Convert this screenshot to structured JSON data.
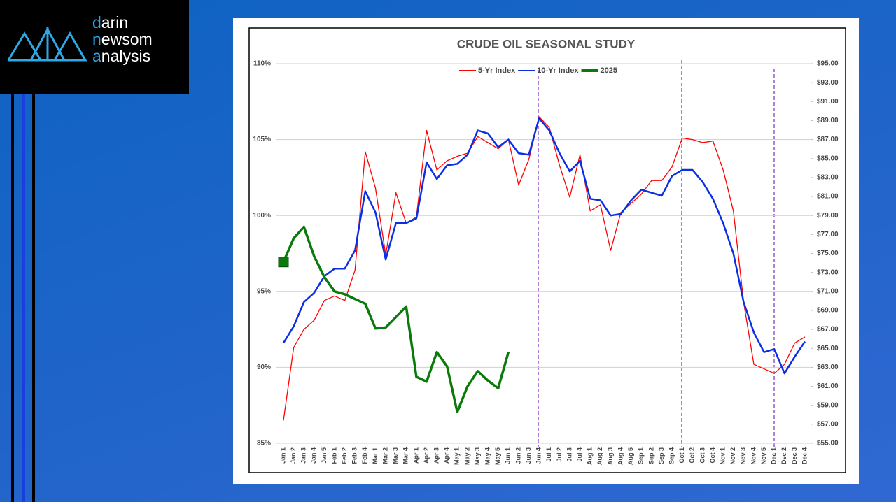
{
  "logo": [
    "darin",
    "newsom",
    "analysis"
  ],
  "chart_data": {
    "type": "line",
    "title": "CRUDE OIL SEASONAL STUDY",
    "categories": [
      "Jan 1",
      "Jan 2",
      "Jan 3",
      "Jan 4",
      "Jan 5",
      "Feb 1",
      "Feb 2",
      "Feb 3",
      "Feb 4",
      "Mar 1",
      "Mar 2",
      "Mar 3",
      "Mar 4",
      "Apr 1",
      "Apr 2",
      "Apr 3",
      "Apr 4",
      "May 1",
      "May 2",
      "May 3",
      "May 4",
      "May 5",
      "Jun 1",
      "Jun 2",
      "Jun 3",
      "Jun 4",
      "Jul 1",
      "Jul 2",
      "Jul 3",
      "Jul 4",
      "Aug 1",
      "Aug 2",
      "Aug 3",
      "Aug 4",
      "Aug 5",
      "Sep 1",
      "Sep 2",
      "Sep 3",
      "Sep 4",
      "Oct 1",
      "Oct 2",
      "Oct 3",
      "Oct 4",
      "Nov 1",
      "Nov 2",
      "Nov 3",
      "Nov 4",
      "Nov 5",
      "Dec 1",
      "Dec 2",
      "Dec 3",
      "Dec 4"
    ],
    "series": [
      {
        "name": "5-Yr Index",
        "color": "#ff0000",
        "values": [
          86.5,
          91.3,
          92.5,
          93.1,
          94.4,
          94.7,
          94.4,
          96.4,
          104.2,
          101.8,
          97.4,
          101.5,
          99.5,
          99.9,
          105.6,
          103.0,
          103.6,
          103.9,
          104.1,
          105.2,
          104.8,
          104.4,
          105.0,
          102.0,
          103.7,
          106.5,
          105.8,
          103.3,
          101.2,
          104.0,
          100.3,
          100.7,
          97.7,
          100.2,
          100.8,
          101.4,
          102.3,
          102.3,
          103.2,
          105.1,
          105.0,
          104.8,
          104.9,
          103.0,
          100.3,
          94.3,
          90.2,
          89.9,
          89.6,
          90.2,
          91.6,
          92.0
        ]
      },
      {
        "name": "10-Yr Index",
        "color": "#0a2ee6",
        "values": [
          91.6,
          92.7,
          94.3,
          94.9,
          96.0,
          96.5,
          96.5,
          97.7,
          101.6,
          100.2,
          97.1,
          99.5,
          99.5,
          99.8,
          103.5,
          102.4,
          103.3,
          103.4,
          104.0,
          105.6,
          105.4,
          104.5,
          105.0,
          104.1,
          104.0,
          106.4,
          105.6,
          104.1,
          102.9,
          103.6,
          101.1,
          101.0,
          100.0,
          100.1,
          101.0,
          101.7,
          101.5,
          101.3,
          102.6,
          103.0,
          103.0,
          102.2,
          101.1,
          99.5,
          97.5,
          94.3,
          92.3,
          91.0,
          91.2,
          89.6,
          90.7,
          91.7
        ]
      },
      {
        "name": "2025",
        "color": "#0a7a0a",
        "axis": "y2",
        "values": [
          74.1,
          76.6,
          77.8,
          74.7,
          72.5,
          71.0,
          70.7,
          70.2,
          69.7,
          67.1,
          67.2,
          68.3,
          69.4,
          62.0,
          61.5,
          64.6,
          63.1,
          58.3,
          61.0,
          62.6,
          61.6,
          60.8,
          64.6,
          null,
          null,
          null,
          null,
          null,
          null,
          null,
          null,
          null,
          null,
          null,
          null,
          null,
          null,
          null,
          null,
          null,
          null,
          null,
          null,
          null,
          null,
          null,
          null,
          null,
          null,
          null,
          null,
          null
        ]
      }
    ],
    "ylim": [
      85,
      110
    ],
    "yticks": [
      {
        "value": 85,
        "label": "85%"
      },
      {
        "value": 90,
        "label": "90%"
      },
      {
        "value": 95,
        "label": "95%"
      },
      {
        "value": 100,
        "label": "100%"
      },
      {
        "value": 105,
        "label": "105%"
      },
      {
        "value": 110,
        "label": "110%"
      }
    ],
    "y2lim": [
      55,
      95
    ],
    "y2ticks": [
      {
        "value": 55,
        "label": "$55.00"
      },
      {
        "value": 57,
        "label": "$57.00"
      },
      {
        "value": 59,
        "label": "$59.00"
      },
      {
        "value": 61,
        "label": "$61.00"
      },
      {
        "value": 63,
        "label": "$63.00"
      },
      {
        "value": 65,
        "label": "$65.00"
      },
      {
        "value": 67,
        "label": "$67.00"
      },
      {
        "value": 69,
        "label": "$69.00"
      },
      {
        "value": 71,
        "label": "$71.00"
      },
      {
        "value": 73,
        "label": "$73.00"
      },
      {
        "value": 75,
        "label": "$75.00"
      },
      {
        "value": 77,
        "label": "$77.00"
      },
      {
        "value": 79,
        "label": "$79.00"
      },
      {
        "value": 81,
        "label": "$81.00"
      },
      {
        "value": 83,
        "label": "$83.00"
      },
      {
        "value": 85,
        "label": "$85.00"
      },
      {
        "value": 87,
        "label": "$87.00"
      },
      {
        "value": 89,
        "label": "$89.00"
      },
      {
        "value": 91,
        "label": "$91.00"
      },
      {
        "value": 93,
        "label": "$93.00"
      },
      {
        "value": 95,
        "label": "$95.00"
      }
    ],
    "grid": true,
    "legend": "top"
  }
}
